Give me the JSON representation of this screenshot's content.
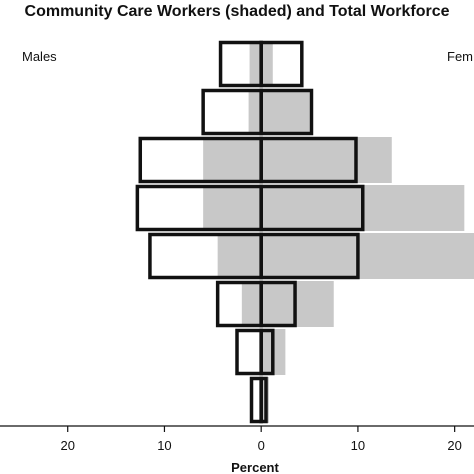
{
  "chart_data": {
    "type": "bar",
    "subtype": "population-pyramid",
    "title": "Community Care Workers (shaded) and Total Workforce",
    "left_label": "Males",
    "right_label": "Fem",
    "xlabel": "Percent",
    "xlim": [
      -27,
      22
    ],
    "x_ticks": [
      -20,
      -10,
      0,
      10,
      20
    ],
    "x_tick_labels": [
      "20",
      "10",
      "0",
      "10",
      "20"
    ],
    "colors": {
      "shaded": "#c8c8c8",
      "outline": "#111111",
      "axis": "#111111"
    },
    "series": [
      {
        "name": "Community Care Workers",
        "style": "shaded",
        "male_values": [
          1.2,
          1.3,
          6.0,
          6.0,
          4.5,
          2.0,
          0.0,
          0.0
        ],
        "female_values": [
          1.2,
          5.0,
          13.5,
          21.0,
          28.0,
          7.5,
          2.5,
          0.8
        ]
      },
      {
        "name": "Total Workforce",
        "style": "outline",
        "male_values": [
          4.2,
          6.0,
          12.5,
          12.8,
          11.5,
          4.5,
          2.5,
          1.0
        ],
        "female_values": [
          4.2,
          5.2,
          9.8,
          10.5,
          10.0,
          3.5,
          1.2,
          0.5
        ]
      }
    ]
  }
}
